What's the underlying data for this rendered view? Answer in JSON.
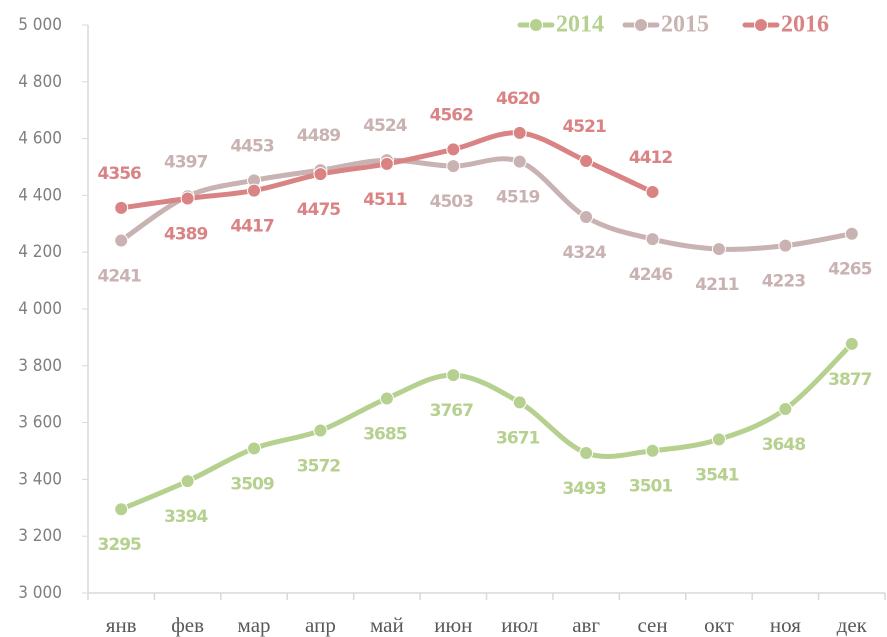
{
  "chart_data": {
    "type": "line",
    "categories": [
      "янв",
      "фев",
      "мар",
      "апр",
      "май",
      "июн",
      "июл",
      "авг",
      "сен",
      "окт",
      "ноя",
      "дек"
    ],
    "series": [
      {
        "name": "2014",
        "color": "#b6d08f",
        "values": [
          3295,
          3394,
          3509,
          3572,
          3685,
          3767,
          3671,
          3493,
          3501,
          3541,
          3648,
          3877
        ]
      },
      {
        "name": "2015",
        "color": "#c9b2b2",
        "values": [
          4241,
          4397,
          4453,
          4489,
          4524,
          4503,
          4519,
          4324,
          4246,
          4211,
          4223,
          4265
        ]
      },
      {
        "name": "2016",
        "color": "#d98384",
        "values": [
          4356,
          4389,
          4417,
          4475,
          4511,
          4562,
          4620,
          4521,
          4412,
          null,
          null,
          null
        ]
      }
    ],
    "ylim": [
      3000,
      5000
    ],
    "yticks": [
      {
        "value": 3000,
        "label": "3 000"
      },
      {
        "value": 3200,
        "label": "3 200"
      },
      {
        "value": 3400,
        "label": "3 400"
      },
      {
        "value": 3600,
        "label": "3 600"
      },
      {
        "value": 3800,
        "label": "3 800"
      },
      {
        "value": 4000,
        "label": "4 000"
      },
      {
        "value": 4200,
        "label": "4 200"
      },
      {
        "value": 4400,
        "label": "4 400"
      },
      {
        "value": 4600,
        "label": "4 600"
      },
      {
        "value": 4800,
        "label": "4 800"
      },
      {
        "value": 5000,
        "label": "5 000"
      }
    ],
    "legend": "top-right",
    "grid": false
  }
}
